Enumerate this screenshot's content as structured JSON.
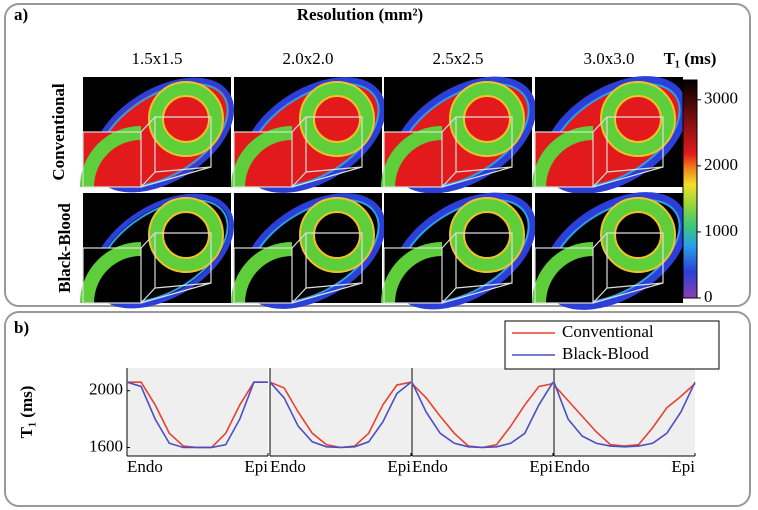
{
  "panel_a": {
    "label": "a)",
    "title": "Resolution (mm²)",
    "columns": [
      "1.5x1.5",
      "2.0x2.0",
      "2.5x2.5",
      "3.0x3.0"
    ],
    "rows": [
      "Conventional",
      "Black-Blood"
    ],
    "colorbar": {
      "title": "T₁ (ms)",
      "lim": [
        0,
        3300
      ],
      "ticks": [
        0,
        1000,
        2000,
        3000
      ]
    }
  },
  "chart_data": {
    "type": "line",
    "label": "b)",
    "y_label": "T₁ (ms)",
    "x": [
      0,
      0.1,
      0.2,
      0.3,
      0.4,
      0.5,
      0.6,
      0.7,
      0.8,
      0.9,
      1
    ],
    "xlim": [
      0,
      1
    ],
    "xticks": [
      {
        "value": 0,
        "label": "Endo"
      },
      {
        "value": 1,
        "label": "Epi"
      }
    ],
    "ylim": [
      1540,
      2160
    ],
    "yticks": [
      1600,
      2000
    ],
    "series": [
      {
        "name": "Conventional",
        "color": "#e8412c",
        "values": [
          [
            2060,
            2060,
            1900,
            1700,
            1610,
            1600,
            1600,
            1700,
            1900,
            2060,
            2060
          ],
          [
            2060,
            2020,
            1850,
            1700,
            1620,
            1600,
            1610,
            1700,
            1900,
            2040,
            2060
          ],
          [
            2050,
            1950,
            1820,
            1700,
            1610,
            1600,
            1620,
            1750,
            1900,
            2030,
            2050
          ],
          [
            2040,
            1930,
            1820,
            1710,
            1620,
            1610,
            1620,
            1740,
            1880,
            1960,
            2050
          ]
        ]
      },
      {
        "name": "Black-Blood",
        "color": "#4b4fc4",
        "values": [
          [
            2060,
            2030,
            1800,
            1630,
            1600,
            1600,
            1600,
            1620,
            1800,
            2060,
            2060
          ],
          [
            2060,
            1950,
            1750,
            1640,
            1605,
            1600,
            1605,
            1640,
            1780,
            1980,
            2060
          ],
          [
            2060,
            1850,
            1700,
            1630,
            1605,
            1600,
            1605,
            1630,
            1700,
            1900,
            2060
          ],
          [
            2060,
            1800,
            1680,
            1630,
            1610,
            1605,
            1610,
            1630,
            1700,
            1850,
            2060
          ]
        ]
      }
    ]
  }
}
